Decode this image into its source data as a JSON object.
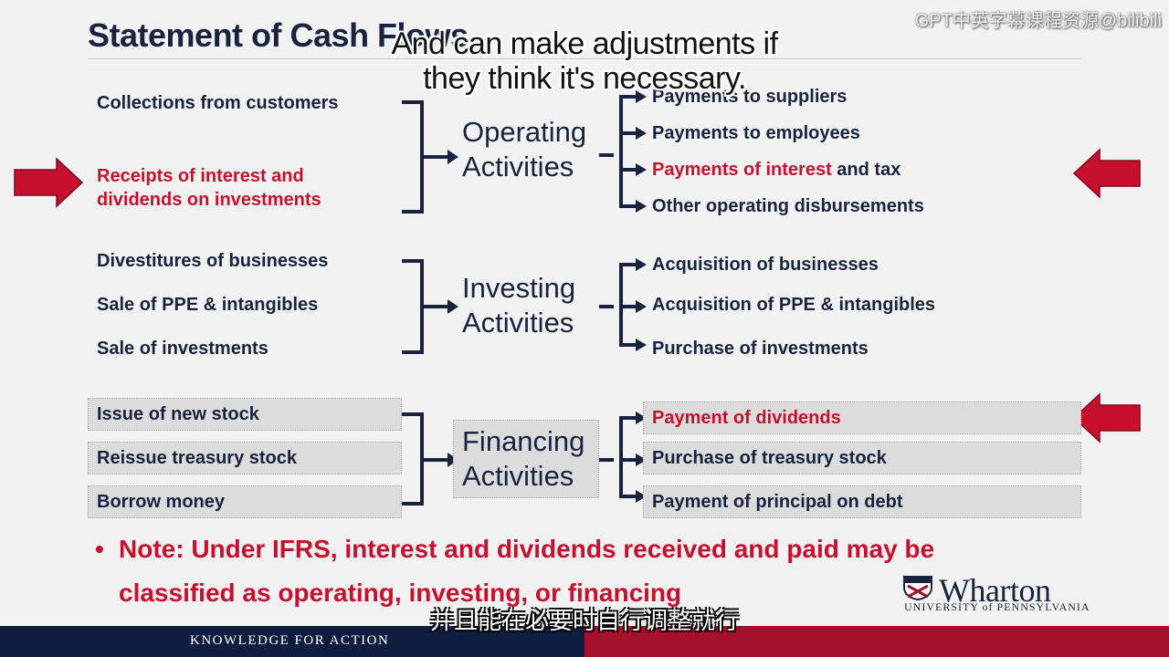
{
  "slide": {
    "title": "Statement of Cash Flows",
    "watermark": "GPT中英字幕课程资源@bilibili",
    "subtitle_en_line1": "And can make adjustments if",
    "subtitle_en_line2": "they think it's necessary.",
    "subtitle_zh": "并且能在必要时自行调整就行"
  },
  "operating": {
    "label_line1": "Operating",
    "label_line2": "Activities",
    "inflows": [
      "Collections from customers",
      "Receipts of interest and",
      "dividends on investments"
    ],
    "outflows": [
      "Payments to suppliers",
      "Payments to employees",
      "Payments of interest",
      "and tax",
      "Other operating disbursements"
    ]
  },
  "investing": {
    "label_line1": "Investing",
    "label_line2": "Activities",
    "inflows": [
      "Divestitures of businesses",
      "Sale of PPE & intangibles",
      "Sale of investments"
    ],
    "outflows": [
      "Acquisition of businesses",
      "Acquisition of PPE & intangibles",
      "Purchase of investments"
    ]
  },
  "financing": {
    "label_line1": "Financing",
    "label_line2": "Activities",
    "inflows": [
      "Issue of new stock",
      "Reissue treasury stock",
      "Borrow money"
    ],
    "outflows": [
      "Payment of dividends",
      "Purchase of treasury stock",
      "Payment of principal on debt"
    ]
  },
  "note": {
    "bullet": "•",
    "line1": "Note: Under IFRS, interest and dividends received and paid may be",
    "line2": "classified as operating, investing, or financing"
  },
  "footer": {
    "tagline": "KNOWLEDGE FOR ACTION",
    "logo_word": "Wharton",
    "logo_sub": "UNIVERSITY of PENNSYLVANIA"
  },
  "colors": {
    "navy": "#17233f",
    "red": "#c8102e",
    "footer_navy": "#0f1d3f",
    "footer_red": "#a4102a"
  }
}
